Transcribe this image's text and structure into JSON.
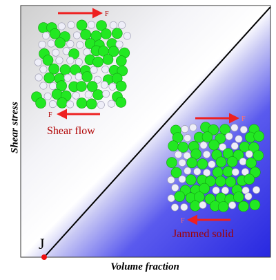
{
  "axes": {
    "x_label": "Volume fraction",
    "y_label": "Shear stress"
  },
  "point_label": "J",
  "regions": {
    "upper": {
      "label": "Shear flow",
      "force": "F"
    },
    "lower": {
      "label": "Jammed solid",
      "force": "F"
    }
  },
  "colors": {
    "flow_background": "#d8d8d8",
    "solid_background": "#3a3ae8",
    "boundary_line": "#000000",
    "large_particle": "#22e822",
    "small_particle": "#eeeef8",
    "force_arrow": "#ee2020",
    "region_label": "#b00000",
    "point_marker": "#ee1010"
  }
}
